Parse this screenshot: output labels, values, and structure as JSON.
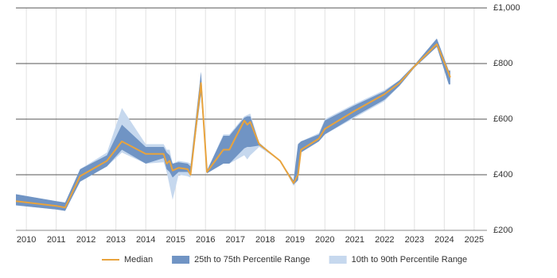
{
  "chart_data": {
    "type": "range-line",
    "x": [
      2009.65,
      2011.0,
      2011.3,
      2011.8,
      2012.7,
      2013.2,
      2014.0,
      2014.6,
      2014.7,
      2014.8,
      2014.9,
      2015.1,
      2015.4,
      2015.5,
      2015.85,
      2016.05,
      2016.6,
      2016.8,
      2017.3,
      2017.4,
      2017.5,
      2017.8,
      2018.5,
      2018.95,
      2019.1,
      2019.2,
      2019.8,
      2020.0,
      2021.0,
      2022.0,
      2022.5,
      2023.0,
      2023.75,
      2024.15,
      2024.2
    ],
    "series": [
      {
        "name": "Median",
        "color": "#e8a33d",
        "values": [
          305,
          288,
          282,
          395,
          450,
          520,
          475,
          475,
          440,
          450,
          415,
          425,
          420,
          400,
          730,
          410,
          490,
          490,
          595,
          580,
          590,
          510,
          450,
          370,
          400,
          490,
          530,
          565,
          630,
          690,
          730,
          790,
          870,
          765,
          750
        ]
      },
      {
        "name": "25th to 75th Percentile Range",
        "color": "#7094c4",
        "low": [
          290,
          275,
          270,
          375,
          430,
          490,
          440,
          460,
          420,
          410,
          390,
          410,
          410,
          400,
          690,
          405,
          440,
          440,
          495,
          500,
          500,
          505,
          450,
          365,
          380,
          480,
          520,
          545,
          610,
          670,
          720,
          785,
          860,
          725,
          725
        ],
        "high": [
          330,
          305,
          300,
          420,
          470,
          580,
          500,
          500,
          480,
          470,
          440,
          445,
          440,
          430,
          770,
          415,
          540,
          540,
          605,
          610,
          610,
          515,
          450,
          380,
          510,
          520,
          545,
          595,
          650,
          700,
          740,
          795,
          890,
          775,
          775
        ]
      },
      {
        "name": "10th to 90th Percentile Range",
        "color": "#c6d8ee",
        "low": [
          290,
          275,
          270,
          375,
          430,
          480,
          440,
          445,
          410,
          360,
          310,
          400,
          395,
          390,
          690,
          405,
          440,
          440,
          470,
          455,
          470,
          500,
          450,
          360,
          380,
          480,
          520,
          545,
          605,
          665,
          720,
          785,
          860,
          725,
          725
        ],
        "high": [
          330,
          305,
          300,
          420,
          480,
          640,
          510,
          510,
          490,
          490,
          440,
          450,
          445,
          440,
          770,
          415,
          545,
          545,
          610,
          615,
          620,
          515,
          450,
          380,
          510,
          520,
          550,
          600,
          655,
          705,
          740,
          795,
          890,
          775,
          775
        ]
      }
    ],
    "xlim": [
      2009.65,
      2025.43
    ],
    "xticks": [
      2010,
      2011,
      2012,
      2013,
      2014,
      2015,
      2016,
      2017,
      2018,
      2019,
      2020,
      2021,
      2022,
      2023,
      2024,
      2025
    ],
    "ylim": [
      200,
      1000
    ],
    "yticks": [
      {
        "value": 200,
        "label": "£200"
      },
      {
        "value": 400,
        "label": "£400"
      },
      {
        "value": 600,
        "label": "£600"
      },
      {
        "value": 800,
        "label": "£800"
      },
      {
        "value": 1000,
        "label": "£1,000"
      }
    ],
    "grid": true
  }
}
